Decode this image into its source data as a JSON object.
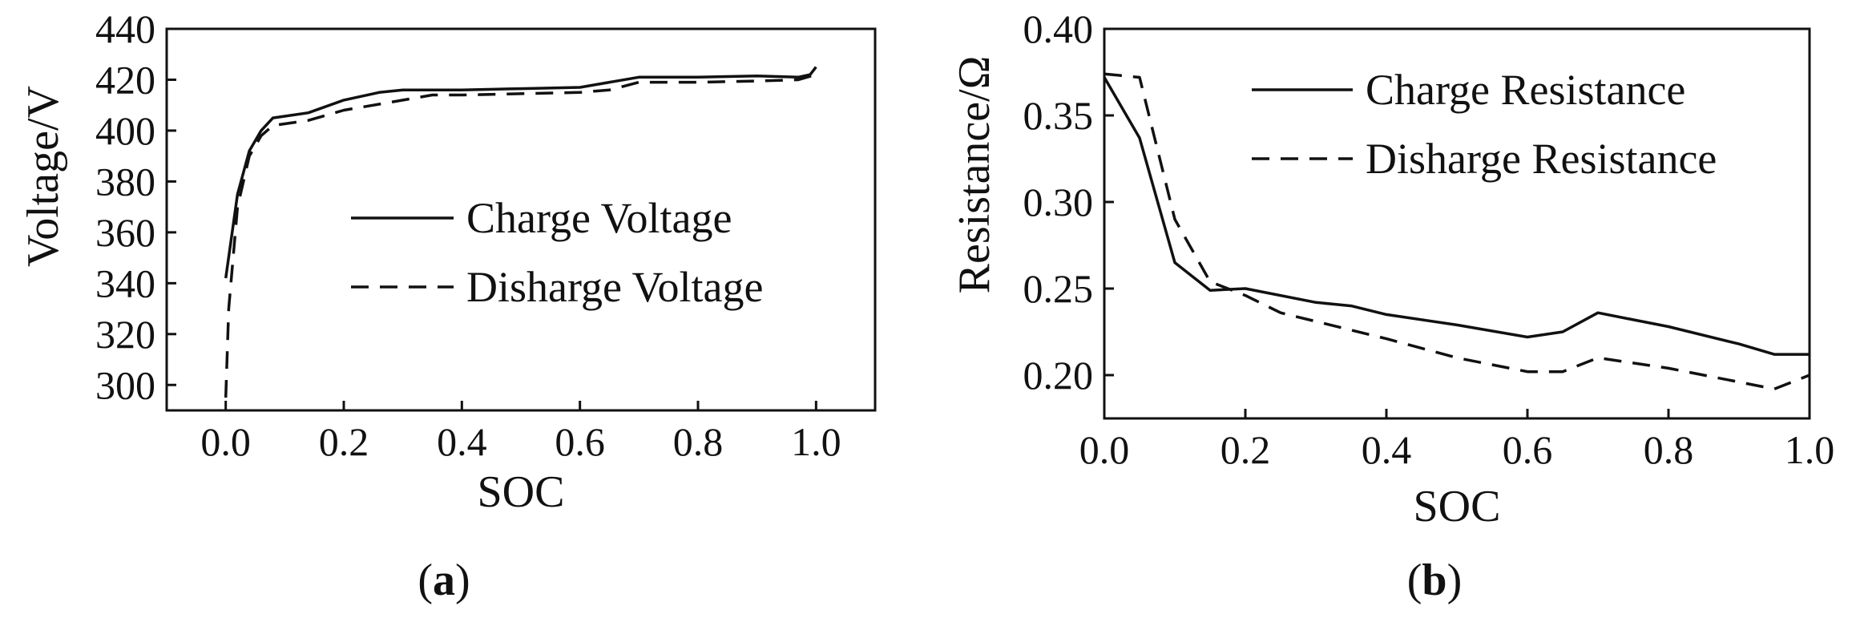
{
  "chart_data": [
    {
      "type": "line",
      "panel_label": {
        "open": "(",
        "letter": "a",
        "close": ")"
      },
      "xlabel": "SOC",
      "ylabel": "Voltage/V",
      "xlim": [
        -0.1,
        1.1
      ],
      "ylim": [
        290,
        440
      ],
      "xticks": [
        0.0,
        0.2,
        0.4,
        0.6,
        0.8,
        1.0
      ],
      "xtick_labels": [
        "0.0",
        "0.2",
        "0.4",
        "0.6",
        "0.8",
        "1.0"
      ],
      "yticks": [
        300,
        320,
        340,
        360,
        380,
        400,
        420,
        440
      ],
      "ytick_labels": [
        "300",
        "320",
        "340",
        "360",
        "380",
        "400",
        "420",
        "440"
      ],
      "legend_position": "center-right",
      "series": [
        {
          "name": "Charge Voltage",
          "style": "solid",
          "x": [
            0.0,
            0.02,
            0.04,
            0.06,
            0.08,
            0.14,
            0.2,
            0.26,
            0.3,
            0.4,
            0.5,
            0.6,
            0.65,
            0.7,
            0.8,
            0.9,
            0.97,
            0.99,
            1.0
          ],
          "y": [
            342,
            375,
            392,
            400,
            405,
            407,
            412,
            415,
            416,
            416,
            416.5,
            417,
            419,
            421,
            421,
            421.5,
            421,
            422,
            425
          ]
        },
        {
          "name": "Disharge Voltage",
          "style": "dashed",
          "x": [
            0.0,
            0.005,
            0.02,
            0.04,
            0.06,
            0.08,
            0.14,
            0.2,
            0.3,
            0.35,
            0.4,
            0.5,
            0.6,
            0.65,
            0.7,
            0.8,
            0.9,
            0.97,
            1.0
          ],
          "y": [
            295,
            330,
            370,
            390,
            398,
            402,
            404,
            408,
            412,
            414,
            414,
            414.5,
            415,
            416,
            419,
            419,
            419.5,
            420,
            422
          ]
        }
      ]
    },
    {
      "type": "line",
      "panel_label": {
        "open": "(",
        "letter": "b",
        "close": ")"
      },
      "xlabel": "SOC",
      "ylabel": "Resistance/Ω",
      "xlim": [
        0.0,
        1.0
      ],
      "ylim": [
        0.175,
        0.4
      ],
      "xticks": [
        0.0,
        0.2,
        0.4,
        0.6,
        0.8,
        1.0
      ],
      "xtick_labels": [
        "0.0",
        "0.2",
        "0.4",
        "0.6",
        "0.8",
        "1.0"
      ],
      "yticks": [
        0.2,
        0.25,
        0.3,
        0.35,
        0.4
      ],
      "ytick_labels": [
        "0.20",
        "0.25",
        "0.30",
        "0.35",
        "0.40"
      ],
      "legend_position": "top-right",
      "series": [
        {
          "name": "Charge Resistance",
          "style": "solid",
          "x": [
            0.0,
            0.05,
            0.1,
            0.15,
            0.2,
            0.3,
            0.35,
            0.4,
            0.5,
            0.6,
            0.65,
            0.7,
            0.75,
            0.8,
            0.9,
            0.95,
            1.0
          ],
          "y": [
            0.372,
            0.337,
            0.265,
            0.249,
            0.25,
            0.242,
            0.24,
            0.235,
            0.229,
            0.222,
            0.225,
            0.236,
            0.232,
            0.228,
            0.218,
            0.212,
            0.212
          ]
        },
        {
          "name": "Disharge Resistance",
          "style": "dashed",
          "x": [
            0.0,
            0.05,
            0.1,
            0.15,
            0.2,
            0.25,
            0.3,
            0.4,
            0.5,
            0.6,
            0.65,
            0.7,
            0.8,
            0.9,
            0.95,
            1.0
          ],
          "y": [
            0.374,
            0.372,
            0.29,
            0.254,
            0.246,
            0.236,
            0.231,
            0.221,
            0.21,
            0.202,
            0.202,
            0.21,
            0.204,
            0.196,
            0.192,
            0.2
          ]
        }
      ]
    }
  ]
}
